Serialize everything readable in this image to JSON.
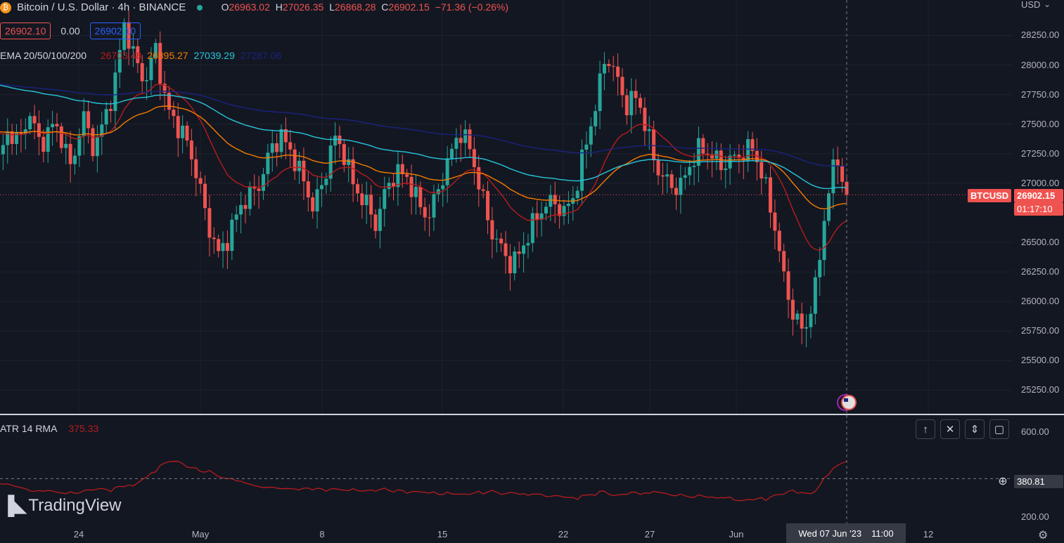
{
  "header": {
    "symbol_title": "Bitcoin / U.S. Dollar · 4h · BINANCE",
    "ohlc": {
      "o_label": "O",
      "o": "26963.02",
      "h_label": "H",
      "h": "27026.35",
      "l_label": "L",
      "l": "26868.28",
      "c_label": "C",
      "c": "26902.15",
      "change": "−71.36 (−0.26%)"
    },
    "sell_price": "26902.10",
    "spread": "0.00",
    "buy_price": "26902.10"
  },
  "ema_legend": {
    "label": "EMA 20/50/100/200",
    "v20": "26703.48",
    "v50": "26895.27",
    "v100": "27039.29",
    "v200": "27287.06"
  },
  "atr_legend": {
    "label": "ATR 14 RMA",
    "value": "375.33"
  },
  "price_axis": {
    "currency": "USD",
    "ticks": [
      "28250.00",
      "28000.00",
      "27750.00",
      "27500.00",
      "27250.00",
      "27000.00",
      "26500.00",
      "26250.00",
      "26000.00",
      "25750.00",
      "25500.00",
      "25250.00"
    ],
    "symbol_tag": "BTCUSD",
    "last_price": "26902.15",
    "countdown": "01:17:10"
  },
  "atr_axis": {
    "ticks": [
      "600.00",
      "200.00"
    ],
    "crosshair_value": "380.81"
  },
  "time_axis": {
    "labels": [
      "24",
      "May",
      "8",
      "15",
      "22",
      "27",
      "Jun",
      "12"
    ],
    "crosshair_label": "Wed 07 Jun '23",
    "crosshair_time": "11:00"
  },
  "watermark": {
    "text": "TradingView"
  },
  "pane_controls": [
    "move-up",
    "close",
    "collapse",
    "maximize"
  ],
  "colors": {
    "bg": "#131722",
    "up": "#26a69a",
    "down": "#ef5350",
    "ema20": "#b71c1c",
    "ema50": "#f57c00",
    "ema100": "#26c6da",
    "ema200": "#1a237e",
    "atr": "#b71c1c"
  },
  "chart_data": {
    "type": "candlestick",
    "interval": "4h",
    "y_range": [
      25050,
      28550
    ],
    "candle_count": 190,
    "visible_closes": [
      27200,
      27450,
      27350,
      27600,
      27300,
      27500,
      27400,
      27100,
      27600,
      27300,
      27500,
      27800,
      28350,
      28050,
      27850,
      28150,
      27650,
      27500,
      27350,
      27050,
      26650,
      26400,
      26550,
      26800,
      26900,
      27000,
      27300,
      27400,
      27250,
      27050,
      26800,
      27000,
      27400,
      27250,
      26950,
      26850,
      26650,
      26950,
      27100,
      27050,
      26850,
      26700,
      26950,
      27200,
      27450,
      27300,
      26950,
      26600,
      26450,
      26300,
      26450,
      26650,
      26800,
      26850,
      26750,
      26900,
      27300,
      27650,
      28100,
      27900,
      27650,
      27750,
      27400,
      27100,
      27000,
      26950,
      27150,
      27300,
      27250,
      27150,
      27200,
      27250,
      27300,
      27050,
      26700,
      26200,
      25850,
      25750,
      26100,
      26800,
      27250,
      26902.15
    ],
    "atr_value": 375.33
  }
}
